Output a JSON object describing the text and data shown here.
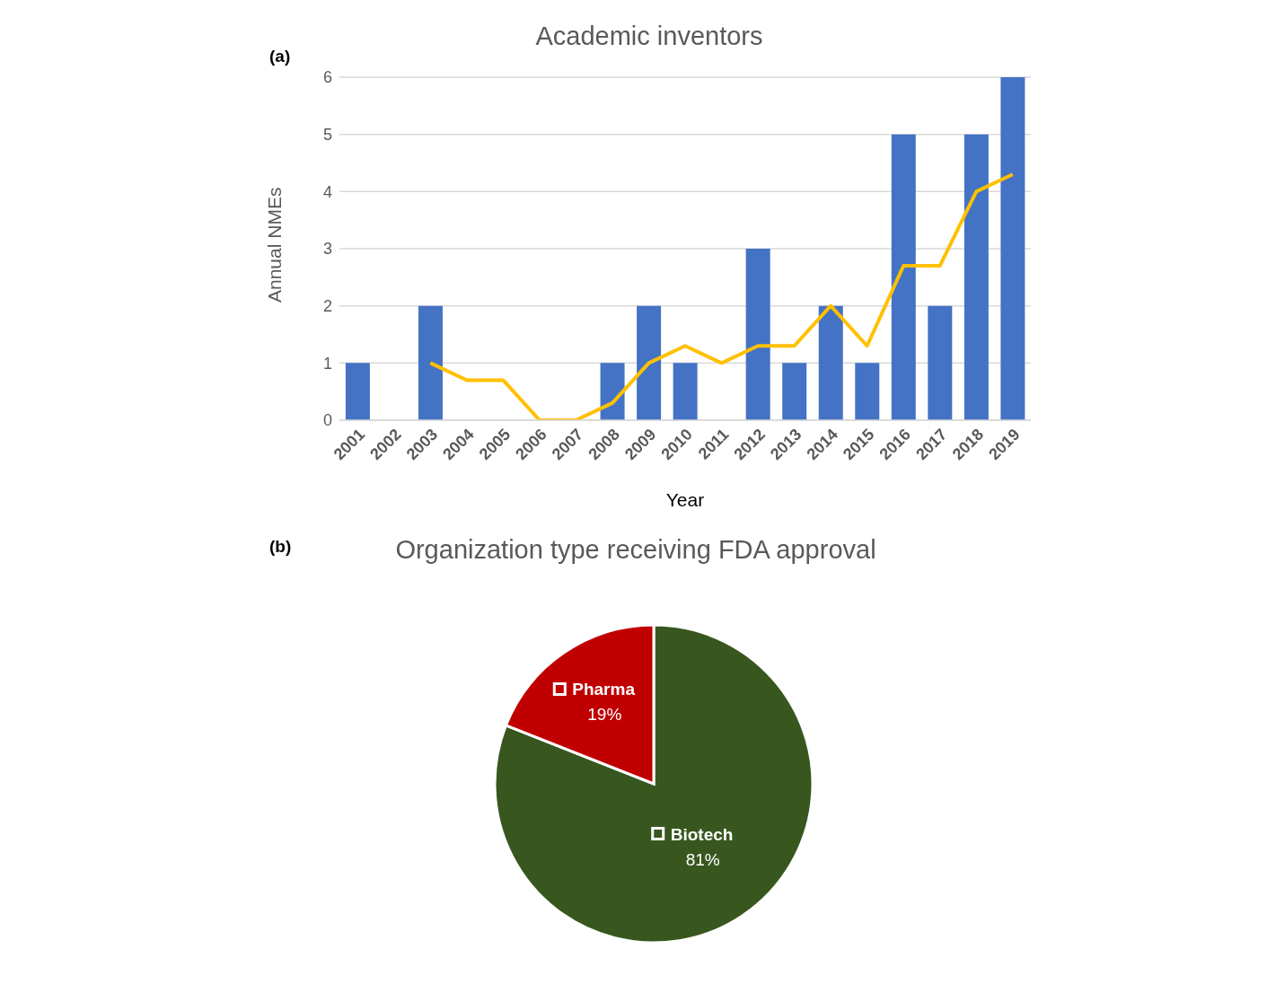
{
  "chart_data": [
    {
      "type": "bar",
      "title": "Academic inventors",
      "xlabel": "Year",
      "ylabel": "Annual NMEs",
      "annotations": [
        "(a)"
      ],
      "categories": [
        "2001",
        "2002",
        "2003",
        "2004",
        "2005",
        "2006",
        "2007",
        "2008",
        "2009",
        "2010",
        "2011",
        "2012",
        "2013",
        "2014",
        "2015",
        "2016",
        "2017",
        "2018",
        "2019"
      ],
      "series": [
        {
          "type": "bar",
          "color": "#4472c4",
          "values": [
            1,
            0,
            2,
            0,
            0,
            0,
            0,
            1,
            2,
            1,
            0,
            3,
            1,
            2,
            1,
            5,
            2,
            5,
            6
          ]
        },
        {
          "type": "line",
          "color": "#ffc000",
          "values": [
            null,
            null,
            1,
            0.7,
            0.7,
            0,
            0,
            0.3,
            1,
            1.3,
            1,
            1.3,
            1.3,
            2,
            1.3,
            2.7,
            2.7,
            4,
            4.3
          ]
        }
      ],
      "ylim": [
        0,
        6
      ],
      "yticks": [
        0,
        1,
        2,
        3,
        4,
        5,
        6
      ],
      "grid": "y",
      "marker": "none",
      "line_style": "solid"
    },
    {
      "type": "pie",
      "title": "Organization type receiving FDA approval",
      "annotations": [
        "(b)"
      ],
      "categories": [
        "Biotech",
        "Pharma"
      ],
      "values": [
        81,
        19
      ],
      "colors": [
        "#38571f",
        "#c00000"
      ],
      "value_labels": [
        "81%",
        "19%"
      ]
    }
  ]
}
